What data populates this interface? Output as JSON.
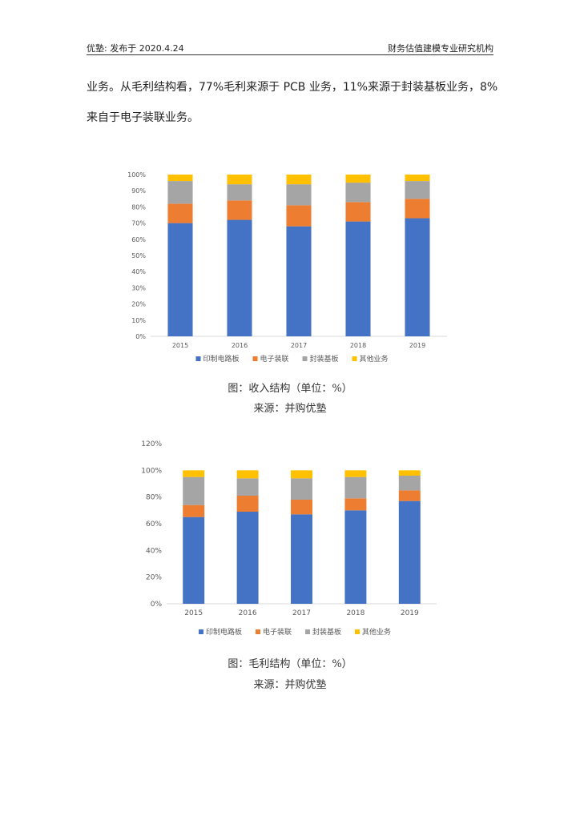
{
  "header": {
    "left": "优塾: 发布于 2020.4.24",
    "right": "财务估值建模专业研究机构"
  },
  "body": {
    "line1": "业务。从毛利结构看，77%毛利来源于 PCB 业务，11%来源于封装基板业务，8%",
    "line2": "来自于电子装联业务。"
  },
  "captions": {
    "chart1_title": "图：收入结构（单位：%）",
    "chart1_source": "来源：并购优塾",
    "chart2_title": "图：毛利结构（单位：%）",
    "chart2_source": "来源：并购优塾"
  },
  "chart_data": [
    {
      "type": "bar",
      "stacked": true,
      "categories": [
        "2015",
        "2016",
        "2017",
        "2018",
        "2019"
      ],
      "ylim": [
        0,
        100
      ],
      "yticks": [
        "0%",
        "10%",
        "20%",
        "30%",
        "40%",
        "50%",
        "60%",
        "70%",
        "80%",
        "90%",
        "100%"
      ],
      "legend_position": "bottom",
      "grid": false,
      "series": [
        {
          "name": "印制电路板",
          "color": "#4472C4",
          "values": [
            70,
            72,
            68,
            71,
            73
          ]
        },
        {
          "name": "电子装联",
          "color": "#ED7D31",
          "values": [
            12,
            12,
            13,
            12,
            12
          ]
        },
        {
          "name": "封装基板",
          "color": "#A5A5A5",
          "values": [
            14,
            10,
            13,
            12,
            11
          ]
        },
        {
          "name": "其他业务",
          "color": "#FFC000",
          "values": [
            4,
            6,
            6,
            5,
            4
          ]
        }
      ]
    },
    {
      "type": "bar",
      "stacked": true,
      "categories": [
        "2015",
        "2016",
        "2017",
        "2018",
        "2019"
      ],
      "ylim": [
        0,
        120
      ],
      "yticks": [
        "0%",
        "20%",
        "40%",
        "60%",
        "80%",
        "100%",
        "120%"
      ],
      "legend_position": "bottom",
      "grid": false,
      "series": [
        {
          "name": "印制电路板",
          "color": "#4472C4",
          "values": [
            65,
            69,
            67,
            70,
            77
          ]
        },
        {
          "name": "电子装联",
          "color": "#ED7D31",
          "values": [
            9,
            12,
            11,
            9,
            8
          ]
        },
        {
          "name": "封装基板",
          "color": "#A5A5A5",
          "values": [
            21,
            13,
            16,
            16,
            11
          ]
        },
        {
          "name": "其他业务",
          "color": "#FFC000",
          "values": [
            5,
            6,
            6,
            5,
            4
          ]
        }
      ]
    }
  ]
}
